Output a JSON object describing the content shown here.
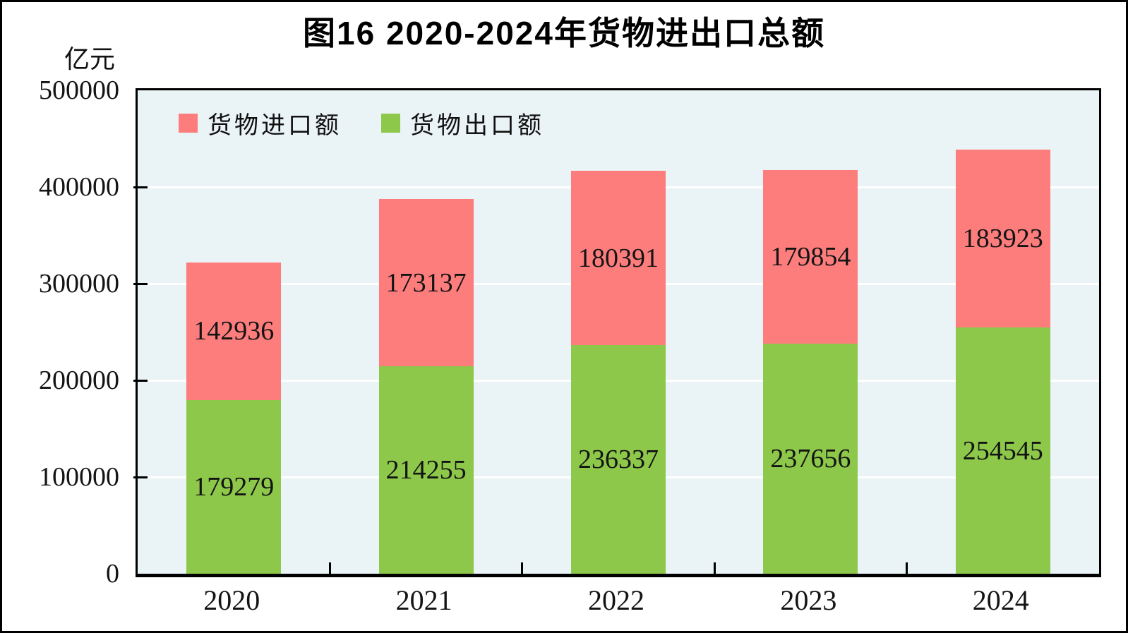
{
  "page": {
    "background": "#ffffff",
    "frame_color": "#000000"
  },
  "title": "图16  2020-2024年货物进出口总额",
  "unit_label": "亿元",
  "legend": {
    "items": [
      {
        "label": "货物进口额",
        "color": "#fd7d7d"
      },
      {
        "label": "货物出口额",
        "color": "#8dc84a"
      }
    ]
  },
  "chart_data": {
    "type": "bar",
    "stacked": true,
    "title": "图16  2020-2024年货物进出口总额",
    "ylabel": "亿元",
    "xlabel": "",
    "categories": [
      "2020",
      "2021",
      "2022",
      "2023",
      "2024"
    ],
    "series": [
      {
        "name": "货物出口额",
        "role": "export",
        "color": "#8dc84a",
        "values": [
          179279,
          214255,
          236337,
          237656,
          254545
        ]
      },
      {
        "name": "货物进口额",
        "role": "import",
        "color": "#fd7d7d",
        "values": [
          142936,
          173137,
          180391,
          179854,
          183923
        ]
      }
    ],
    "totals": [
      322215,
      387392,
      416728,
      417510,
      438468
    ],
    "ylim": [
      0,
      500000
    ],
    "yticks": [
      0,
      100000,
      200000,
      300000,
      400000,
      500000
    ],
    "grid": "horizontal",
    "gridline_color": "#ffffff",
    "plot_background": "#eaf3f6",
    "legend_position": "top-left-inside",
    "value_labels": "centered-in-segment"
  }
}
